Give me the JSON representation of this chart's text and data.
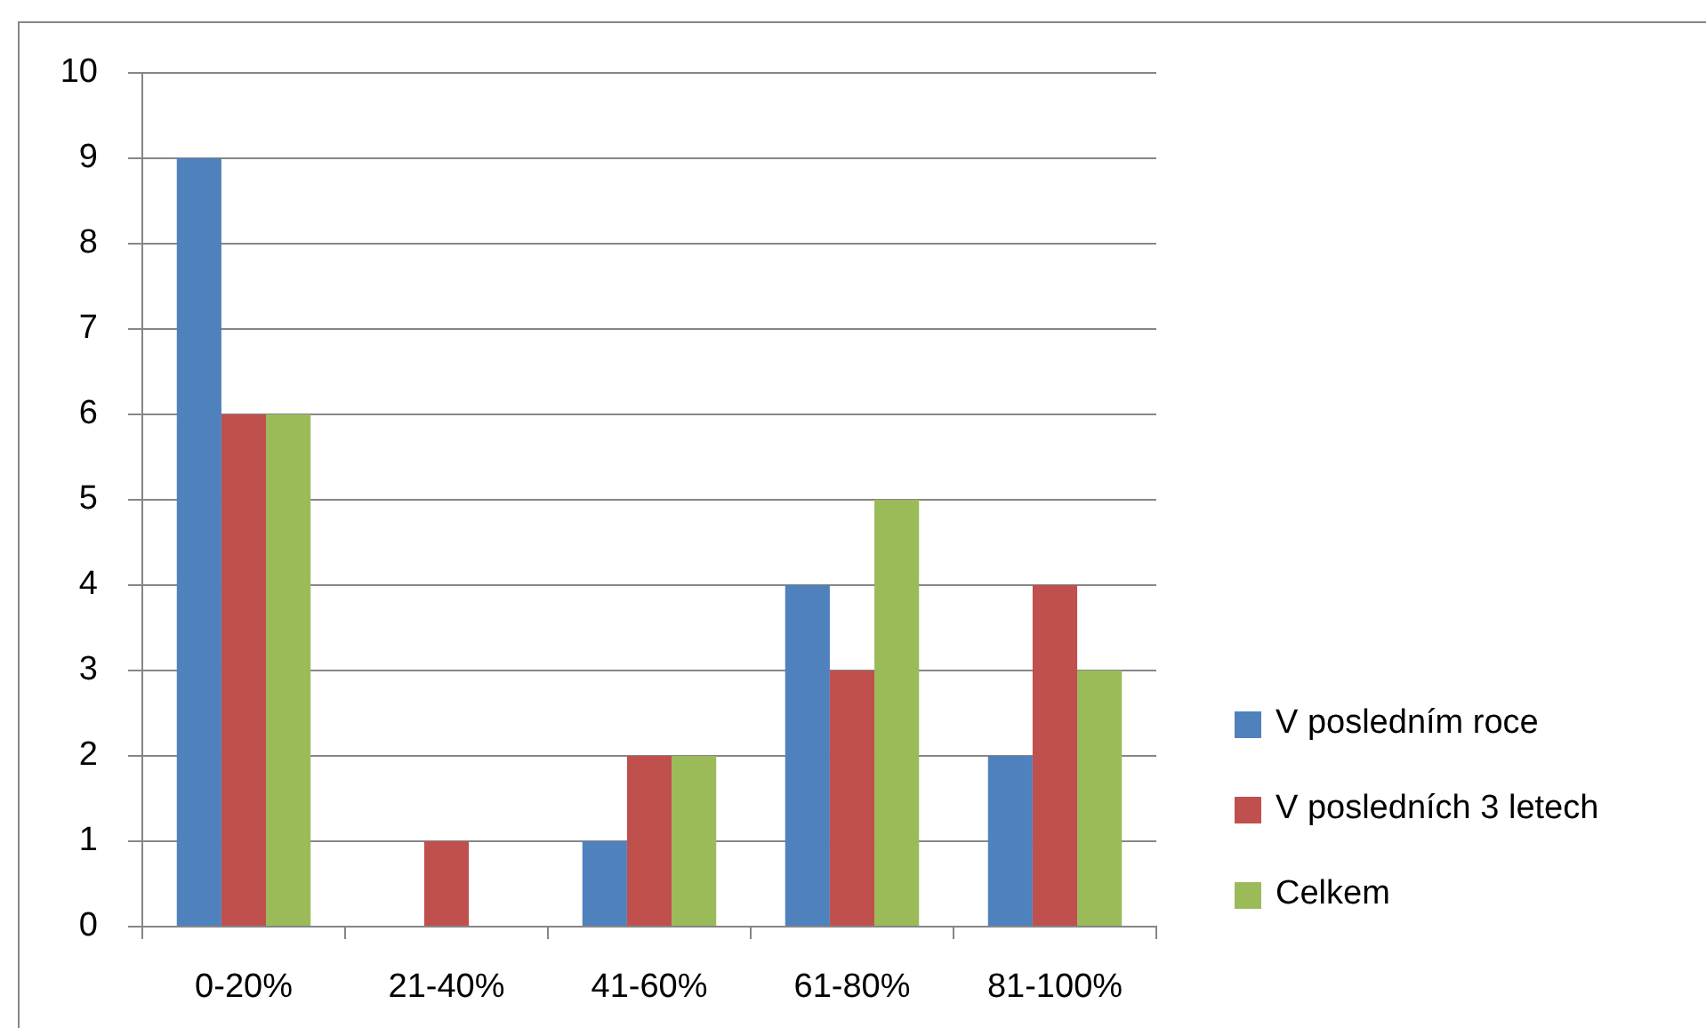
{
  "chart_data": {
    "type": "bar",
    "categories": [
      "0-20%",
      "21-40%",
      "41-60%",
      "61-80%",
      "81-100%"
    ],
    "series": [
      {
        "name": "V posledním roce",
        "color": "#4f81bd",
        "values": [
          9,
          0,
          1,
          4,
          2
        ]
      },
      {
        "name": "V posledních 3 letech",
        "color": "#c0504d",
        "values": [
          6,
          1,
          2,
          3,
          4
        ]
      },
      {
        "name": "Celkem",
        "color": "#9bbb59",
        "values": [
          6,
          0,
          2,
          5,
          3
        ]
      }
    ],
    "ylim": [
      0,
      10
    ],
    "yticks": [
      0,
      1,
      2,
      3,
      4,
      5,
      6,
      7,
      8,
      9,
      10
    ],
    "grid": "y",
    "legend": "right"
  }
}
